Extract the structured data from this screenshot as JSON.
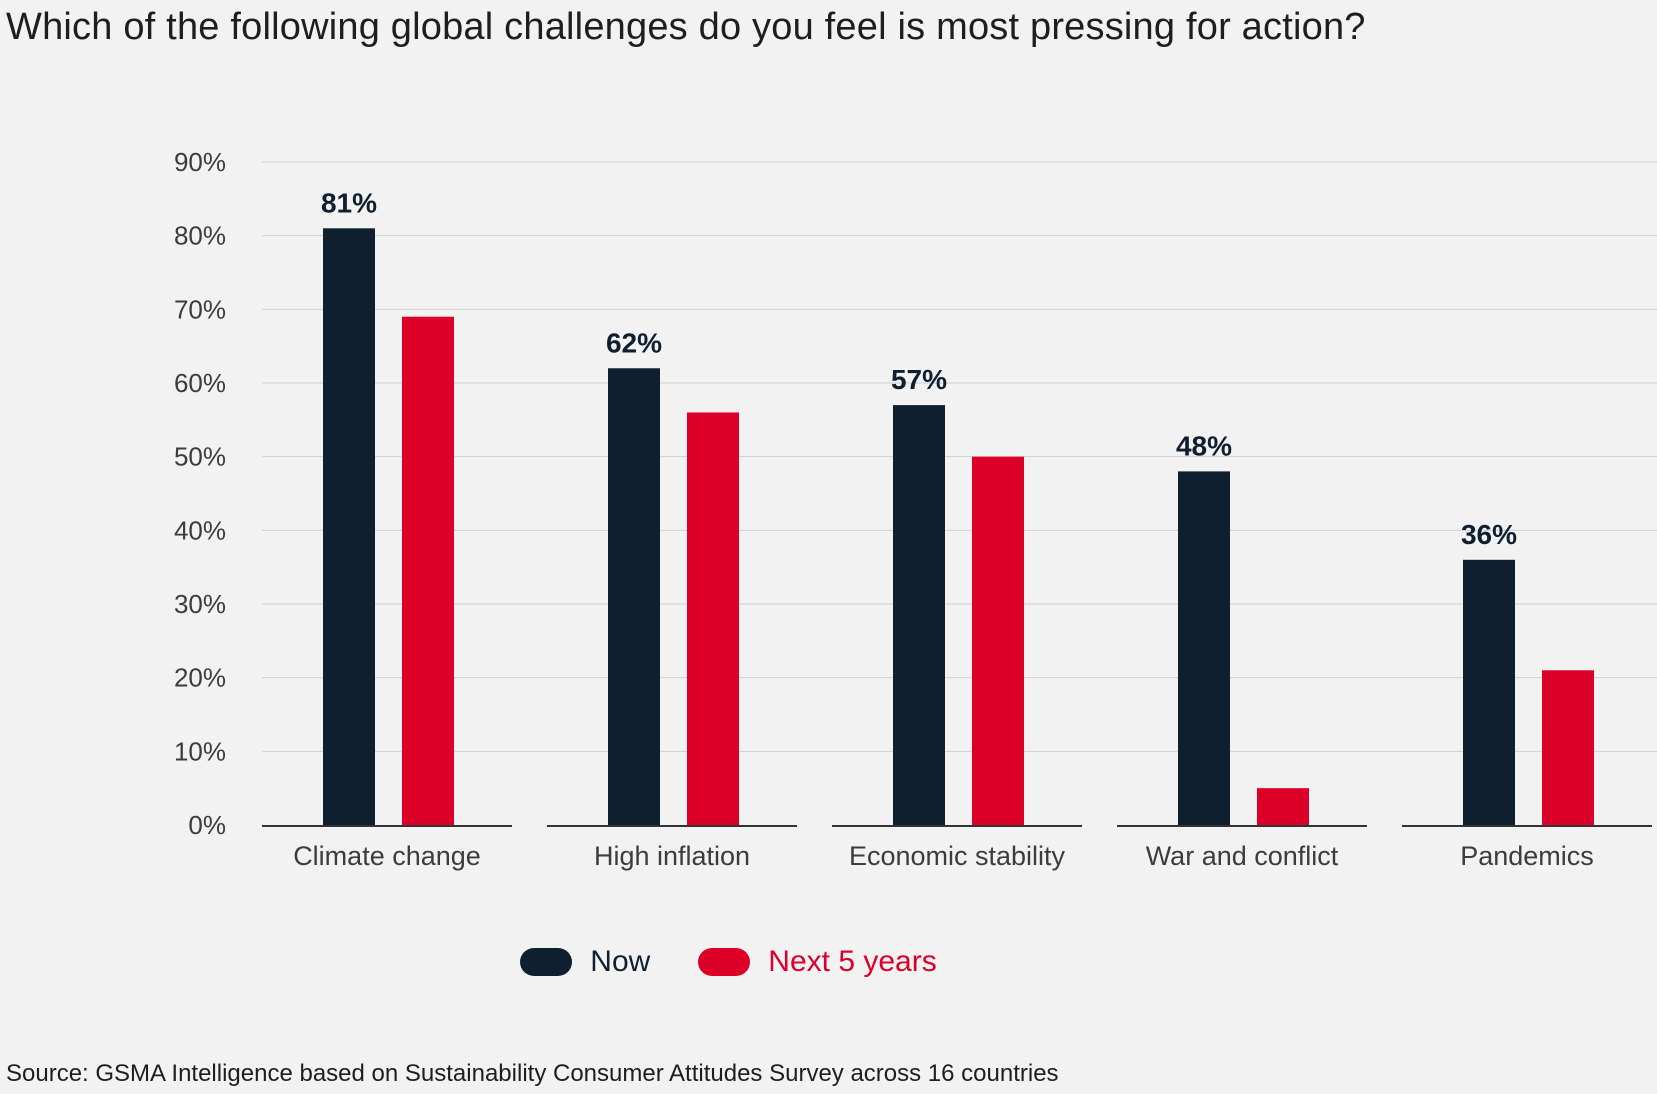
{
  "chart_data": {
    "type": "bar",
    "title": "Which of the following global challenges do you feel is most pressing for action?",
    "categories": [
      "Climate change",
      "High inflation",
      "Economic stability",
      "War and conflict",
      "Pandemics"
    ],
    "series": [
      {
        "name": "Now",
        "color": "#0f1f30",
        "values": [
          81,
          62,
          57,
          48,
          36
        ],
        "labels": [
          "81%",
          "62%",
          "57%",
          "48%",
          "36%"
        ]
      },
      {
        "name": "Next 5 years",
        "color": "#dc0028",
        "values": [
          69,
          56,
          50,
          5,
          21
        ]
      }
    ],
    "ylim": [
      0,
      90
    ],
    "yticks": [
      "0%",
      "10%",
      "20%",
      "30%",
      "40%",
      "50%",
      "60%",
      "70%",
      "80%",
      "90%"
    ],
    "grid": true,
    "legend_position": "bottom-center",
    "source": "Source: GSMA Intelligence based on Sustainability Consumer Attitudes Survey across 16 countries"
  }
}
